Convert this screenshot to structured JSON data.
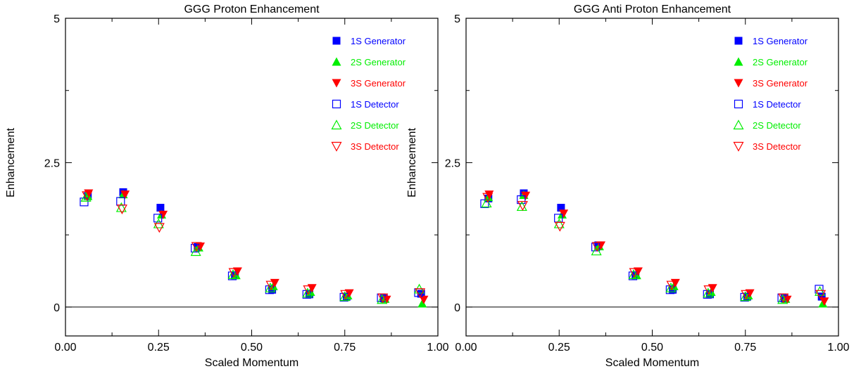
{
  "colors": {
    "gen1": "#0000ff",
    "gen2": "#00ee00",
    "gen3": "#ff0000",
    "axis": "#000000"
  },
  "chart_data": [
    {
      "type": "scatter",
      "title": "GGG Proton Enhancement",
      "xlabel": "Scaled Momentum",
      "ylabel": "Enhancement",
      "xlim": [
        0,
        1
      ],
      "ylim": [
        -0.5,
        5
      ],
      "xticks": [
        "0.00",
        "0.25",
        "0.50",
        "0.75",
        "1.00"
      ],
      "yticks": [
        "0",
        "2.5",
        "5"
      ],
      "reference_line_y": 0,
      "legend_position": "top-right",
      "series": [
        {
          "name": "1S Generator",
          "marker": "square-filled",
          "color": "#0000ff",
          "x": [
            0.06,
            0.155,
            0.255,
            0.355,
            0.455,
            0.555,
            0.655,
            0.755,
            0.855,
            0.955
          ],
          "y": [
            1.92,
            1.99,
            1.72,
            1.04,
            0.55,
            0.3,
            0.22,
            0.18,
            0.15,
            0.23
          ]
        },
        {
          "name": "2S Generator",
          "marker": "triangle-up-filled",
          "color": "#00ee00",
          "x": [
            0.06,
            0.155,
            0.258,
            0.358,
            0.458,
            0.558,
            0.658,
            0.758,
            0.858,
            0.958
          ],
          "y": [
            1.92,
            1.95,
            1.6,
            1.03,
            0.55,
            0.36,
            0.26,
            0.2,
            0.14,
            0.06
          ]
        },
        {
          "name": "3S Generator",
          "marker": "triangle-down-filled",
          "color": "#ff0000",
          "x": [
            0.062,
            0.16,
            0.262,
            0.362,
            0.462,
            0.562,
            0.662,
            0.762,
            0.862,
            0.962
          ],
          "y": [
            1.97,
            1.95,
            1.6,
            1.05,
            0.62,
            0.42,
            0.33,
            0.24,
            0.13,
            0.13
          ]
        },
        {
          "name": "1S Detector",
          "marker": "square-open",
          "color": "#0000ff",
          "x": [
            0.05,
            0.148,
            0.248,
            0.348,
            0.448,
            0.548,
            0.648,
            0.748,
            0.848,
            0.948
          ],
          "y": [
            1.82,
            1.83,
            1.54,
            1.02,
            0.54,
            0.3,
            0.22,
            0.17,
            0.16,
            0.25
          ]
        },
        {
          "name": "2S Detector",
          "marker": "triangle-up-open",
          "color": "#00ee00",
          "x": [
            0.055,
            0.15,
            0.25,
            0.35,
            0.45,
            0.55,
            0.65,
            0.75,
            0.85,
            0.95
          ],
          "y": [
            1.9,
            1.72,
            1.44,
            0.96,
            0.56,
            0.33,
            0.24,
            0.18,
            0.13,
            0.31
          ]
        },
        {
          "name": "3S Detector",
          "marker": "triangle-down-open",
          "color": "#ff0000",
          "x": [
            0.058,
            0.152,
            0.252,
            0.352,
            0.452,
            0.552,
            0.652,
            0.752,
            0.852,
            0.952
          ],
          "y": [
            1.93,
            1.7,
            1.38,
            1.05,
            0.6,
            0.38,
            0.3,
            0.22,
            0.16,
            0.25
          ]
        }
      ]
    },
    {
      "type": "scatter",
      "title": "GGG Anti Proton Enhancement",
      "xlabel": "Scaled Momentum",
      "ylabel": "Enhancement",
      "xlim": [
        0,
        1
      ],
      "ylim": [
        -0.5,
        5
      ],
      "xticks": [
        "0.00",
        "0.25",
        "0.50",
        "0.75",
        "1.00"
      ],
      "yticks": [
        "0",
        "2.5",
        "5"
      ],
      "reference_line_y": 0,
      "legend_position": "top-right",
      "series": [
        {
          "name": "1S Generator",
          "marker": "square-filled",
          "color": "#0000ff",
          "x": [
            0.06,
            0.155,
            0.255,
            0.355,
            0.455,
            0.555,
            0.655,
            0.755,
            0.855,
            0.955
          ],
          "y": [
            1.88,
            1.97,
            1.72,
            1.07,
            0.55,
            0.3,
            0.22,
            0.18,
            0.15,
            0.18
          ]
        },
        {
          "name": "2S Generator",
          "marker": "triangle-up-filled",
          "color": "#00ee00",
          "x": [
            0.06,
            0.155,
            0.258,
            0.358,
            0.458,
            0.558,
            0.658,
            0.758,
            0.858,
            0.958
          ],
          "y": [
            1.9,
            1.94,
            1.6,
            1.05,
            0.55,
            0.36,
            0.26,
            0.2,
            0.14,
            0.06
          ]
        },
        {
          "name": "3S Generator",
          "marker": "triangle-down-filled",
          "color": "#ff0000",
          "x": [
            0.062,
            0.16,
            0.262,
            0.362,
            0.462,
            0.562,
            0.662,
            0.762,
            0.862,
            0.962
          ],
          "y": [
            1.95,
            1.93,
            1.62,
            1.07,
            0.62,
            0.42,
            0.33,
            0.24,
            0.13,
            0.1
          ]
        },
        {
          "name": "1S Detector",
          "marker": "square-open",
          "color": "#0000ff",
          "x": [
            0.05,
            0.148,
            0.248,
            0.348,
            0.448,
            0.548,
            0.648,
            0.748,
            0.848,
            0.948
          ],
          "y": [
            1.79,
            1.86,
            1.54,
            1.04,
            0.54,
            0.3,
            0.22,
            0.17,
            0.16,
            0.31
          ]
        },
        {
          "name": "2S Detector",
          "marker": "triangle-up-open",
          "color": "#00ee00",
          "x": [
            0.055,
            0.15,
            0.25,
            0.35,
            0.45,
            0.55,
            0.65,
            0.75,
            0.85,
            0.95
          ],
          "y": [
            1.8,
            1.74,
            1.44,
            0.97,
            0.56,
            0.33,
            0.24,
            0.18,
            0.13,
            0.27
          ]
        },
        {
          "name": "3S Detector",
          "marker": "triangle-down-open",
          "color": "#ff0000",
          "x": [
            0.058,
            0.152,
            0.252,
            0.352,
            0.452,
            0.552,
            0.652,
            0.752,
            0.852,
            0.952
          ],
          "y": [
            1.9,
            1.76,
            1.4,
            1.05,
            0.6,
            0.38,
            0.3,
            0.22,
            0.16,
            0.22
          ]
        }
      ]
    }
  ]
}
